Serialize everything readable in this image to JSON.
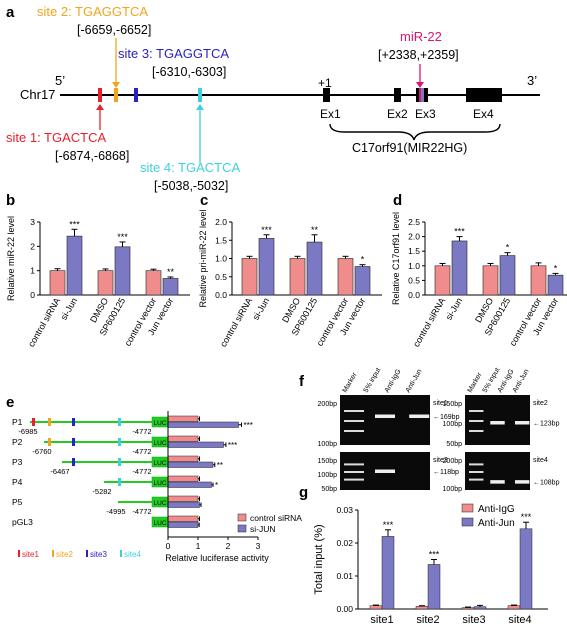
{
  "colors": {
    "control": "#f08c8c",
    "treated": "#7b79c4",
    "site1": "#e8202a",
    "site2": "#f2a51a",
    "site3": "#2a22c0",
    "site4": "#3fd0dd",
    "mir": "#e1136f",
    "green": "#22cc22"
  },
  "panel_a": {
    "letter": "a",
    "chrom": "Chr17",
    "five": "5’",
    "three": "3’",
    "plus1": "+1",
    "exons": [
      "Ex1",
      "Ex2",
      "Ex3",
      "Ex4"
    ],
    "gene": "C17orf91(MIR22HG)",
    "mir_name": "miR-22",
    "mir_coords": "[+2338,+2359]",
    "site1": {
      "label": "site 1: TGACTCA",
      "coords": "[-6874,-6868]"
    },
    "site2": {
      "label": "site 2: TGAGGTCA",
      "coords": "[-6659,-6652]"
    },
    "site3": {
      "label": "site 3: TGAGGTCA",
      "coords": "[-6310,-6303]"
    },
    "site4": {
      "label": "site 4: TGACTCA",
      "coords": "[-5038,-5032]"
    }
  },
  "panel_f": {
    "letter": "f",
    "lanes": [
      "Marker",
      "5% input",
      "Anti-IgG",
      "Anti-Jun"
    ],
    "gels": [
      {
        "site": "site1",
        "size": "169bp",
        "markers": [
          "200bp",
          "100bp"
        ]
      },
      {
        "site": "site2",
        "size": "123bp",
        "markers": [
          "150bp",
          "100bp",
          "50bp"
        ]
      },
      {
        "site": "site3",
        "size": "118bp",
        "markers": [
          "150bp",
          "100bp",
          "50bp"
        ]
      },
      {
        "site": "site4",
        "size": "108bp",
        "markers": [
          "200bp",
          "100bp"
        ]
      }
    ]
  },
  "chart_data": [
    {
      "panel": "b",
      "type": "bar",
      "ylabel": "Relative miR-22 level",
      "ylim": [
        0,
        3
      ],
      "yticks": [
        0,
        1,
        2,
        3
      ],
      "categories": [
        "control siRNA",
        "si-Jun",
        "DMSO",
        "SP600125",
        "control vector",
        "Jun vector"
      ],
      "values": [
        1.0,
        2.42,
        1.0,
        1.98,
        1.0,
        0.68
      ],
      "errors": [
        0.08,
        0.28,
        0.07,
        0.2,
        0.06,
        0.06
      ],
      "significance": [
        "",
        "***",
        "",
        "***",
        "",
        "**"
      ]
    },
    {
      "panel": "c",
      "type": "bar",
      "ylabel": "Relative pri-miR-22 level",
      "ylim": [
        0,
        2
      ],
      "yticks": [
        0.0,
        0.5,
        1.0,
        1.5,
        2.0
      ],
      "categories": [
        "control siRNA",
        "si-Jun",
        "DMSO",
        "SP600125",
        "control vector",
        "Jun vector"
      ],
      "values": [
        1.0,
        1.55,
        1.0,
        1.45,
        1.0,
        0.78
      ],
      "errors": [
        0.06,
        0.1,
        0.06,
        0.2,
        0.06,
        0.05
      ],
      "significance": [
        "",
        "***",
        "",
        "**",
        "",
        "*"
      ]
    },
    {
      "panel": "d",
      "type": "bar",
      "ylabel": "Relative C17orf91 level",
      "ylim": [
        0,
        2.5
      ],
      "yticks": [
        0.0,
        0.5,
        1.0,
        1.5,
        2.0,
        2.5
      ],
      "categories": [
        "control siRNA",
        "si-Jun",
        "DMSO",
        "SP600125",
        "control vector",
        "Jun vector"
      ],
      "values": [
        1.0,
        1.85,
        1.0,
        1.35,
        1.0,
        0.68
      ],
      "errors": [
        0.08,
        0.15,
        0.08,
        0.1,
        0.1,
        0.06
      ],
      "significance": [
        "",
        "***",
        "",
        "*",
        "",
        "*"
      ]
    },
    {
      "panel": "e",
      "type": "bar",
      "orientation": "horizontal",
      "xlabel": "Relative luciferase activity",
      "xlim": [
        0,
        3
      ],
      "xticks": [
        0,
        1,
        2,
        3
      ],
      "categories": [
        "P1",
        "P2",
        "P3",
        "P4",
        "P5",
        "pGL3"
      ],
      "constructs": [
        {
          "start": "-6985",
          "end": "-4772",
          "sites": [
            "site1",
            "site2",
            "site3",
            "site4"
          ]
        },
        {
          "start": "-6760",
          "end": "-4772",
          "sites": [
            "site2",
            "site3",
            "site4"
          ]
        },
        {
          "start": "-6467",
          "end": "-4772",
          "sites": [
            "site3",
            "site4"
          ]
        },
        {
          "start": "-5282",
          "end": "",
          "sites": [
            "site4"
          ]
        },
        {
          "start": "-4995",
          "end": "-4772",
          "sites": []
        },
        {
          "start": "",
          "end": "",
          "sites": []
        }
      ],
      "luc": "LUC",
      "series": [
        {
          "name": "control siRNA",
          "values": [
            1.0,
            1.0,
            1.0,
            1.0,
            1.0,
            1.0
          ],
          "errors": [
            0.05,
            0.05,
            0.05,
            0.05,
            0.05,
            0.05
          ]
        },
        {
          "name": "si-JUN",
          "values": [
            2.35,
            1.85,
            1.5,
            1.45,
            1.05,
            1.0
          ],
          "errors": [
            0.1,
            0.08,
            0.06,
            0.05,
            0.05,
            0.04
          ]
        }
      ],
      "significance": [
        "***",
        "***",
        "**",
        "*",
        "",
        ""
      ],
      "site_legend": [
        "site1",
        "site2",
        "site3",
        "site4"
      ]
    },
    {
      "panel": "g",
      "type": "bar",
      "ylabel": "Total input (%)",
      "ylim": [
        0,
        0.03
      ],
      "yticks": [
        0.0,
        0.01,
        0.02,
        0.03
      ],
      "categories": [
        "site1",
        "site2",
        "site3",
        "site4"
      ],
      "series": [
        {
          "name": "Anti-IgG",
          "values": [
            0.001,
            0.0008,
            0.0004,
            0.001
          ],
          "errors": [
            0.0002,
            0.0002,
            0.0002,
            0.0002
          ]
        },
        {
          "name": "Anti-Jun",
          "values": [
            0.022,
            0.0135,
            0.0007,
            0.0243
          ],
          "errors": [
            0.002,
            0.0015,
            0.0004,
            0.002
          ]
        }
      ],
      "significance": [
        "***",
        "***",
        "",
        "***"
      ]
    }
  ]
}
